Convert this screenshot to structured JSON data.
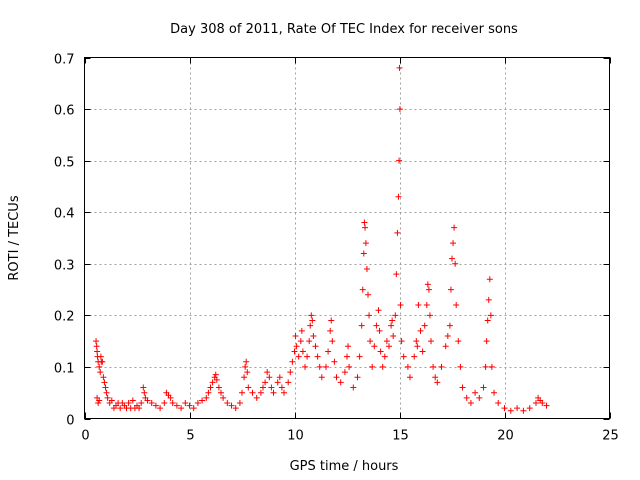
{
  "chart_data": {
    "type": "scatter",
    "title": "Day 308 of 2011, Rate Of TEC Index for receiver sons",
    "xlabel": "GPS time / hours",
    "ylabel": "ROTI / TECUs",
    "xlim": [
      0,
      25
    ],
    "ylim": [
      0,
      0.7
    ],
    "xticks": [
      0,
      5,
      10,
      15,
      20,
      25
    ],
    "yticks": [
      0,
      0.1,
      0.2,
      0.3,
      0.4,
      0.5,
      0.6,
      0.7
    ],
    "xtick_labels": [
      "0",
      "5",
      "10",
      "15",
      "20",
      "25"
    ],
    "ytick_labels": [
      "0",
      "0.1",
      "0.2",
      "0.3",
      "0.4",
      "0.5",
      "0.6",
      "0.7"
    ],
    "grid": true,
    "marker": "+",
    "color": "#ff0000",
    "series": [
      {
        "name": "ROTI",
        "points": [
          [
            0.55,
            0.15
          ],
          [
            0.58,
            0.14
          ],
          [
            0.6,
            0.13
          ],
          [
            0.62,
            0.12
          ],
          [
            0.65,
            0.11
          ],
          [
            0.7,
            0.1
          ],
          [
            0.75,
            0.09
          ],
          [
            0.78,
            0.12
          ],
          [
            0.8,
            0.11
          ],
          [
            0.85,
            0.11
          ],
          [
            0.9,
            0.08
          ],
          [
            0.95,
            0.07
          ],
          [
            1.0,
            0.06
          ],
          [
            1.05,
            0.05
          ],
          [
            1.1,
            0.04
          ],
          [
            0.6,
            0.04
          ],
          [
            0.65,
            0.03
          ],
          [
            0.7,
            0.035
          ],
          [
            1.2,
            0.03
          ],
          [
            1.3,
            0.035
          ],
          [
            1.4,
            0.02
          ],
          [
            1.5,
            0.025
          ],
          [
            1.6,
            0.03
          ],
          [
            1.7,
            0.02
          ],
          [
            1.8,
            0.03
          ],
          [
            1.9,
            0.025
          ],
          [
            2.0,
            0.02
          ],
          [
            2.1,
            0.03
          ],
          [
            2.2,
            0.02
          ],
          [
            2.3,
            0.035
          ],
          [
            2.4,
            0.02
          ],
          [
            2.5,
            0.025
          ],
          [
            2.6,
            0.02
          ],
          [
            2.7,
            0.03
          ],
          [
            2.8,
            0.06
          ],
          [
            2.85,
            0.05
          ],
          [
            2.9,
            0.04
          ],
          [
            3.0,
            0.035
          ],
          [
            3.2,
            0.03
          ],
          [
            3.4,
            0.025
          ],
          [
            3.6,
            0.02
          ],
          [
            3.8,
            0.03
          ],
          [
            3.9,
            0.05
          ],
          [
            4.0,
            0.045
          ],
          [
            4.1,
            0.04
          ],
          [
            4.2,
            0.03
          ],
          [
            4.4,
            0.025
          ],
          [
            4.6,
            0.02
          ],
          [
            4.8,
            0.03
          ],
          [
            5.0,
            0.025
          ],
          [
            5.2,
            0.02
          ],
          [
            5.4,
            0.03
          ],
          [
            5.6,
            0.035
          ],
          [
            5.8,
            0.04
          ],
          [
            5.9,
            0.05
          ],
          [
            6.0,
            0.06
          ],
          [
            6.1,
            0.07
          ],
          [
            6.2,
            0.08
          ],
          [
            6.25,
            0.085
          ],
          [
            6.3,
            0.075
          ],
          [
            6.4,
            0.06
          ],
          [
            6.5,
            0.05
          ],
          [
            6.6,
            0.04
          ],
          [
            6.8,
            0.03
          ],
          [
            7.0,
            0.025
          ],
          [
            7.2,
            0.02
          ],
          [
            7.4,
            0.03
          ],
          [
            7.5,
            0.05
          ],
          [
            7.6,
            0.08
          ],
          [
            7.65,
            0.1
          ],
          [
            7.7,
            0.11
          ],
          [
            7.75,
            0.09
          ],
          [
            7.8,
            0.06
          ],
          [
            8.0,
            0.05
          ],
          [
            8.2,
            0.04
          ],
          [
            8.4,
            0.05
          ],
          [
            8.5,
            0.06
          ],
          [
            8.6,
            0.07
          ],
          [
            8.7,
            0.09
          ],
          [
            8.8,
            0.08
          ],
          [
            8.9,
            0.06
          ],
          [
            9.0,
            0.05
          ],
          [
            9.2,
            0.07
          ],
          [
            9.3,
            0.08
          ],
          [
            9.4,
            0.06
          ],
          [
            9.5,
            0.05
          ],
          [
            9.7,
            0.07
          ],
          [
            9.8,
            0.09
          ],
          [
            9.9,
            0.11
          ],
          [
            10.0,
            0.13
          ],
          [
            10.05,
            0.16
          ],
          [
            10.1,
            0.14
          ],
          [
            10.2,
            0.12
          ],
          [
            10.3,
            0.15
          ],
          [
            10.35,
            0.17
          ],
          [
            10.4,
            0.13
          ],
          [
            10.5,
            0.1
          ],
          [
            10.6,
            0.12
          ],
          [
            10.7,
            0.15
          ],
          [
            10.75,
            0.18
          ],
          [
            10.8,
            0.2
          ],
          [
            10.85,
            0.19
          ],
          [
            10.9,
            0.16
          ],
          [
            11.0,
            0.14
          ],
          [
            11.1,
            0.12
          ],
          [
            11.2,
            0.1
          ],
          [
            11.3,
            0.08
          ],
          [
            11.5,
            0.1
          ],
          [
            11.6,
            0.13
          ],
          [
            11.7,
            0.17
          ],
          [
            11.75,
            0.19
          ],
          [
            11.8,
            0.15
          ],
          [
            11.9,
            0.11
          ],
          [
            12.0,
            0.08
          ],
          [
            12.2,
            0.07
          ],
          [
            12.4,
            0.09
          ],
          [
            12.5,
            0.12
          ],
          [
            12.55,
            0.14
          ],
          [
            12.6,
            0.1
          ],
          [
            12.8,
            0.06
          ],
          [
            13.0,
            0.08
          ],
          [
            13.1,
            0.12
          ],
          [
            13.2,
            0.18
          ],
          [
            13.25,
            0.25
          ],
          [
            13.3,
            0.32
          ],
          [
            13.33,
            0.38
          ],
          [
            13.36,
            0.37
          ],
          [
            13.4,
            0.34
          ],
          [
            13.45,
            0.29
          ],
          [
            13.5,
            0.24
          ],
          [
            13.55,
            0.2
          ],
          [
            13.6,
            0.15
          ],
          [
            13.7,
            0.1
          ],
          [
            13.8,
            0.14
          ],
          [
            13.9,
            0.18
          ],
          [
            14.0,
            0.21
          ],
          [
            14.05,
            0.17
          ],
          [
            14.1,
            0.13
          ],
          [
            14.2,
            0.1
          ],
          [
            14.3,
            0.12
          ],
          [
            14.4,
            0.15
          ],
          [
            14.5,
            0.14
          ],
          [
            14.6,
            0.18
          ],
          [
            14.65,
            0.19
          ],
          [
            14.7,
            0.16
          ],
          [
            14.8,
            0.2
          ],
          [
            14.85,
            0.28
          ],
          [
            14.9,
            0.36
          ],
          [
            14.95,
            0.43
          ],
          [
            14.98,
            0.5
          ],
          [
            15.02,
            0.6
          ],
          [
            15.0,
            0.68
          ],
          [
            15.05,
            0.22
          ],
          [
            15.1,
            0.15
          ],
          [
            15.2,
            0.12
          ],
          [
            15.4,
            0.1
          ],
          [
            15.5,
            0.08
          ],
          [
            15.7,
            0.12
          ],
          [
            15.8,
            0.15
          ],
          [
            15.85,
            0.14
          ],
          [
            15.9,
            0.22
          ],
          [
            16.0,
            0.17
          ],
          [
            16.1,
            0.13
          ],
          [
            16.2,
            0.18
          ],
          [
            16.3,
            0.22
          ],
          [
            16.35,
            0.26
          ],
          [
            16.4,
            0.25
          ],
          [
            16.45,
            0.2
          ],
          [
            16.5,
            0.15
          ],
          [
            16.6,
            0.1
          ],
          [
            16.7,
            0.08
          ],
          [
            16.8,
            0.07
          ],
          [
            17.0,
            0.1
          ],
          [
            17.2,
            0.14
          ],
          [
            17.3,
            0.16
          ],
          [
            17.4,
            0.18
          ],
          [
            17.45,
            0.25
          ],
          [
            17.5,
            0.31
          ],
          [
            17.55,
            0.34
          ],
          [
            17.6,
            0.37
          ],
          [
            17.65,
            0.3
          ],
          [
            17.7,
            0.22
          ],
          [
            17.8,
            0.15
          ],
          [
            17.9,
            0.1
          ],
          [
            18.0,
            0.06
          ],
          [
            18.2,
            0.04
          ],
          [
            18.4,
            0.03
          ],
          [
            18.6,
            0.05
          ],
          [
            18.8,
            0.04
          ],
          [
            19.0,
            0.06
          ],
          [
            19.1,
            0.1
          ],
          [
            19.15,
            0.15
          ],
          [
            19.2,
            0.19
          ],
          [
            19.25,
            0.23
          ],
          [
            19.3,
            0.27
          ],
          [
            19.35,
            0.2
          ],
          [
            19.4,
            0.1
          ],
          [
            19.5,
            0.05
          ],
          [
            19.7,
            0.03
          ],
          [
            20.0,
            0.02
          ],
          [
            20.3,
            0.015
          ],
          [
            20.6,
            0.02
          ],
          [
            20.9,
            0.015
          ],
          [
            21.2,
            0.02
          ],
          [
            21.5,
            0.03
          ],
          [
            21.6,
            0.04
          ],
          [
            21.7,
            0.035
          ],
          [
            21.8,
            0.03
          ],
          [
            22.0,
            0.025
          ]
        ]
      }
    ]
  }
}
